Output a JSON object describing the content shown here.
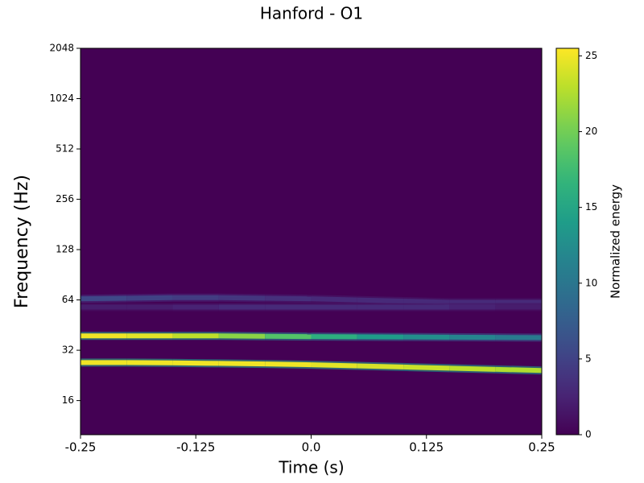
{
  "chart_data": {
    "type": "spectrogram",
    "title": "Hanford - O1",
    "xlabel": "Time (s)",
    "ylabel": "Frequency (Hz)",
    "colorbar_label": "Normalized energy",
    "colormap": "viridis",
    "background_color": "#440154",
    "yscale": "log2",
    "x": [
      -0.25,
      -0.2,
      -0.15,
      -0.1,
      -0.05,
      0.0,
      0.05,
      0.1,
      0.15,
      0.2,
      0.25
    ],
    "series": [
      {
        "values": [
          39,
          39,
          39,
          39,
          38.8,
          38.6,
          38.5,
          38.4,
          38.3,
          38.2,
          38.1
        ],
        "energy": [
          25,
          25,
          24,
          22,
          20,
          17,
          15,
          13,
          12,
          11,
          10
        ]
      },
      {
        "values": [
          27,
          27,
          26.9,
          26.7,
          26.5,
          26.2,
          25.8,
          25.4,
          25,
          24.6,
          24.2
        ],
        "energy": [
          25,
          25,
          25,
          25,
          25,
          25,
          24,
          24,
          23,
          23,
          22
        ]
      },
      {
        "values": [
          65,
          65.5,
          66,
          66,
          65.5,
          65,
          64,
          63,
          62,
          62,
          62
        ],
        "energy": [
          6,
          5,
          5,
          4,
          4,
          3,
          3,
          3,
          3,
          3,
          3
        ]
      },
      {
        "values": [
          58,
          58,
          58,
          58,
          58,
          58,
          58,
          58,
          58,
          58,
          58
        ],
        "energy": [
          2,
          2,
          2,
          3,
          3,
          3,
          3,
          3,
          3,
          2,
          2
        ]
      }
    ],
    "xlim": [
      -0.25,
      0.25
    ],
    "xticks": [
      -0.25,
      -0.125,
      {
        "value": 0,
        "label": "0.0"
      },
      0.125,
      0.25
    ],
    "ylim": [
      10,
      2048
    ],
    "yticks": [
      16,
      32,
      64,
      128,
      256,
      512,
      1024,
      2048
    ],
    "clim": [
      0,
      25.5
    ],
    "cticks": [
      0,
      5,
      10,
      15,
      20,
      25
    ]
  }
}
